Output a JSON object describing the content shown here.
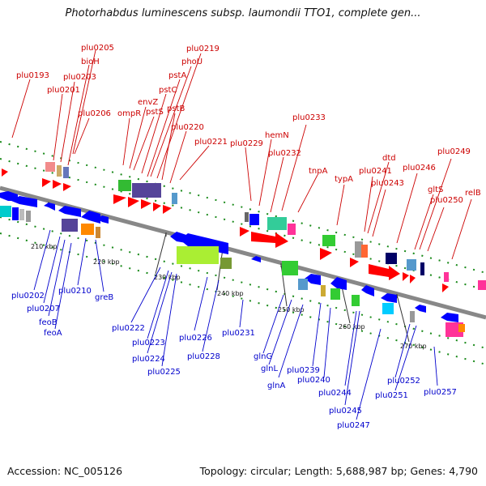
{
  "title": "Photorhabdus luminescens subsp. laumondii TTO1, complete gen...",
  "footer": {
    "accession": "Accession: NC_005126",
    "summary": "Topology: circular; Length: 5,688,987 bp; Genes: 4,790"
  },
  "colors": {
    "forward_label": "#cc0000",
    "reverse_label": "#0000cc",
    "forward_gene": "#ff0000",
    "reverse_gene": "#0000ff",
    "backbone": "#888888",
    "dots": "#1a8a1a"
  },
  "ticks": [
    {
      "label": "210 kbp"
    },
    {
      "label": "220 kbp"
    },
    {
      "label": "230 kbp"
    },
    {
      "label": "240 kbp"
    },
    {
      "label": "250 kbp"
    },
    {
      "label": "260 kbp"
    },
    {
      "label": "270 kbp"
    }
  ],
  "top_labels": [
    "plu0193",
    "plu0201",
    "plu0203",
    "bioH",
    "plu0205",
    "plu0206",
    "ompR",
    "envZ",
    "pstS",
    "pstC",
    "pstA",
    "phoU",
    "plu0219",
    "pstB",
    "plu0220",
    "plu0221",
    "plu0229",
    "hemN",
    "plu0232",
    "plu0233",
    "tnpA",
    "typA",
    "plu0241",
    "dtd",
    "plu0243",
    "plu0246",
    "gltS",
    "plu0249",
    "plu0250",
    "relB"
  ],
  "bottom_labels": [
    "plu0202",
    "plu0207",
    "feoB",
    "feoA",
    "plu0210",
    "greB",
    "plu0222",
    "plu0223",
    "plu0224",
    "plu0225",
    "plu0226",
    "plu0228",
    "plu0231",
    "glnG",
    "glnL",
    "glnA",
    "plu0239",
    "plu0240",
    "plu0244",
    "plu0245",
    "plu0247",
    "plu0252",
    "plu0251",
    "plu0257"
  ]
}
